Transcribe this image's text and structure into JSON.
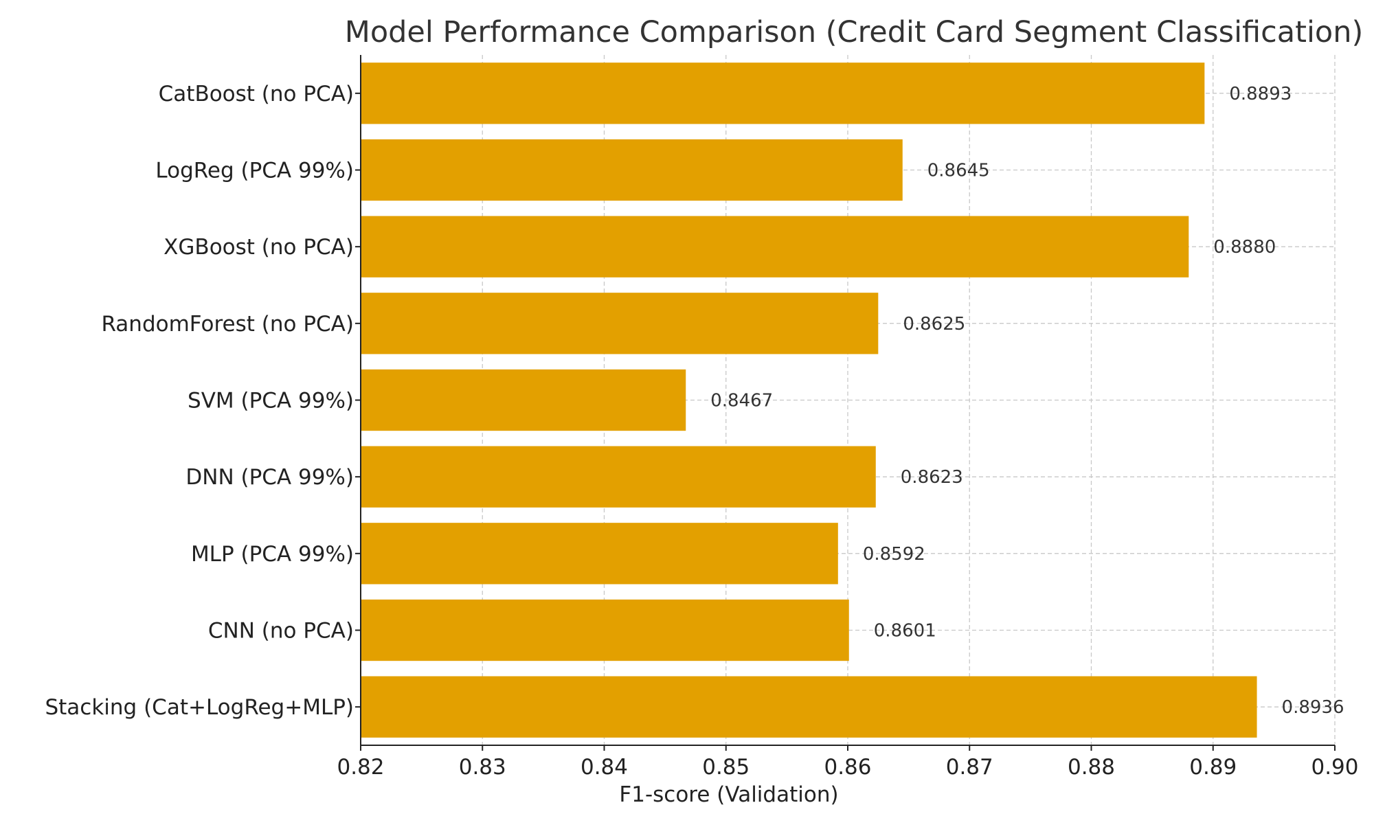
{
  "chart_data": {
    "type": "bar",
    "orientation": "horizontal",
    "title": "Model Performance Comparison (Credit Card Segment Classification)",
    "xlabel": "F1-score (Validation)",
    "ylabel": "",
    "xlim": [
      0.82,
      0.9
    ],
    "xticks": [
      0.82,
      0.83,
      0.84,
      0.85,
      0.86,
      0.87,
      0.88,
      0.89,
      0.9
    ],
    "xtick_labels": [
      "0.82",
      "0.83",
      "0.84",
      "0.85",
      "0.86",
      "0.87",
      "0.88",
      "0.89",
      "0.90"
    ],
    "grid": true,
    "bar_color": "#E3A000",
    "categories": [
      "CatBoost (no PCA)",
      "LogReg (PCA 99%)",
      "XGBoost (no PCA)",
      "RandomForest (no PCA)",
      "SVM (PCA 99%)",
      "DNN (PCA 99%)",
      "MLP (PCA 99%)",
      "CNN (no PCA)",
      "Stacking (Cat+LogReg+MLP)"
    ],
    "values": [
      0.8893,
      0.8645,
      0.888,
      0.8625,
      0.8467,
      0.8623,
      0.8592,
      0.8601,
      0.8936
    ],
    "value_labels": [
      "0.8893",
      "0.8645",
      "0.8880",
      "0.8625",
      "0.8467",
      "0.8623",
      "0.8592",
      "0.8601",
      "0.8936"
    ]
  }
}
